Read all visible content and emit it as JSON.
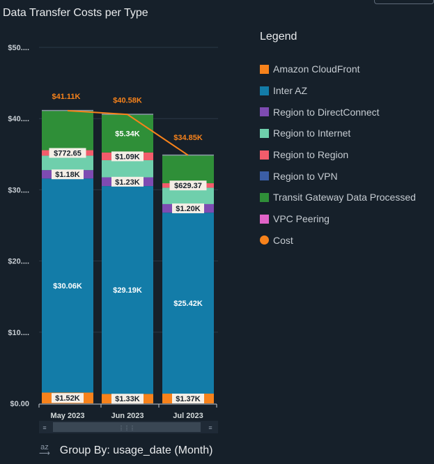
{
  "chart_data": {
    "type": "bar",
    "stacked": true,
    "title": "Data Transfer Costs per Type",
    "categories": [
      "May 2023",
      "Jun 2023",
      "Jul 2023"
    ],
    "ylim": [
      0,
      50000
    ],
    "yticks": [
      "$0.00",
      "$10....",
      "$20....",
      "$30....",
      "$40....",
      "$50...."
    ],
    "ytick_values": [
      0,
      10000,
      20000,
      30000,
      40000,
      50000
    ],
    "grid": true,
    "legend_position": "right",
    "legend_title": "Legend",
    "series": [
      {
        "name": "Amazon CloudFront",
        "color": "#f7821b",
        "values": [
          1520,
          1330,
          1370
        ],
        "labels": [
          "$1.52K",
          "$1.33K",
          "$1.37K"
        ]
      },
      {
        "name": "Inter AZ",
        "color": "#137ca8",
        "values": [
          30060,
          29190,
          25420
        ],
        "labels": [
          "$30.06K",
          "$29.19K",
          "$25.42K"
        ]
      },
      {
        "name": "Region to DirectConnect",
        "color": "#7e4bb2",
        "values": [
          1180,
          1230,
          1200
        ],
        "labels": [
          "$1.18K",
          "$1.23K",
          "$1.20K"
        ]
      },
      {
        "name": "Region to Internet",
        "color": "#6fcfac",
        "values": [
          2030,
          2400,
          2300
        ],
        "labels": [
          "",
          "",
          ""
        ]
      },
      {
        "name": "Region to Region",
        "color": "#f25c6b",
        "values": [
          772.65,
          1090,
          629.37
        ],
        "labels": [
          "$772.65",
          "$1.09K",
          "$629.37"
        ]
      },
      {
        "name": "Region to VPN",
        "color": "#3b5ea6",
        "values": [
          0,
          0,
          0
        ],
        "labels": [
          "",
          "",
          ""
        ]
      },
      {
        "name": "Transit Gateway Data Processed",
        "color": "#2f8f38",
        "values": [
          5550,
          5340,
          3930
        ],
        "labels": [
          "",
          "$5.34K",
          ""
        ]
      },
      {
        "name": "VPC Peering",
        "color": "#e063c7",
        "values": [
          0,
          0,
          0
        ],
        "labels": [
          "",
          "",
          ""
        ]
      }
    ],
    "line": {
      "name": "Cost",
      "color": "#f7821b",
      "values": [
        41110,
        40580,
        34850
      ],
      "labels": [
        "$41.11K",
        "$40.58K",
        "$34.85K"
      ]
    }
  },
  "group_by": {
    "icon": "sort-az-icon",
    "icon_text": "az",
    "label": "Group By: usage_date (Month)"
  }
}
